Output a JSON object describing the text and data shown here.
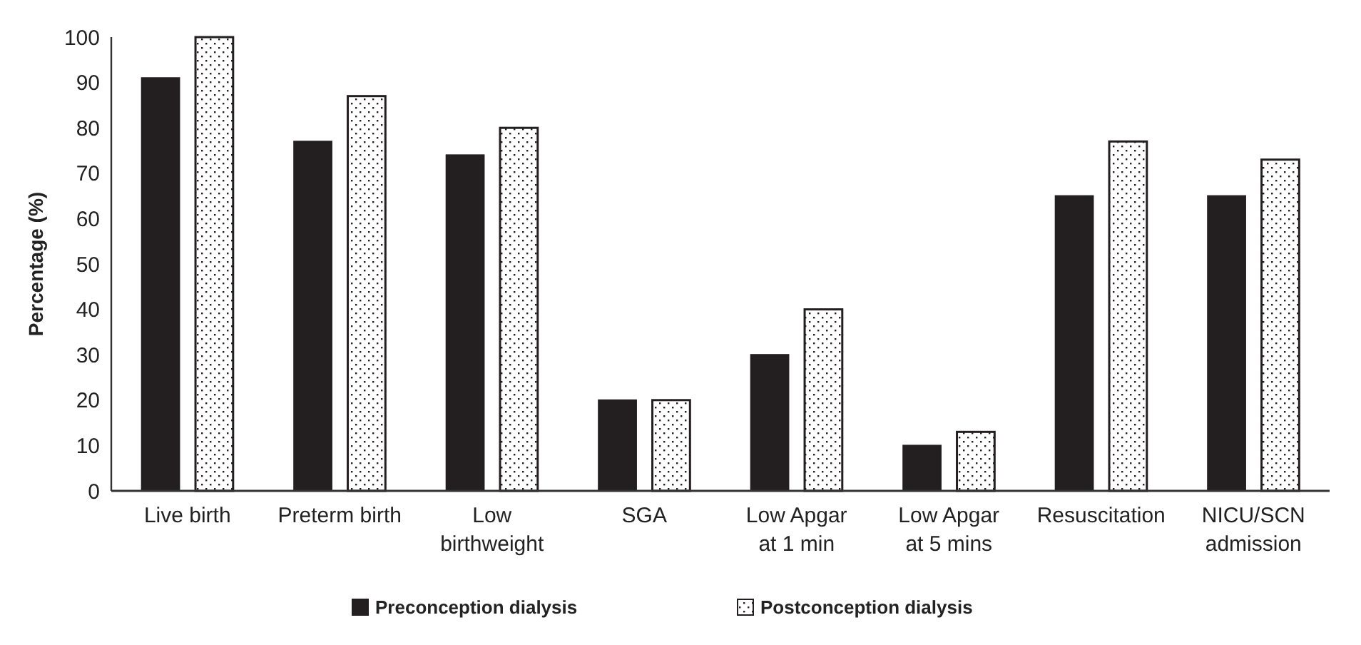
{
  "chart_data": {
    "type": "bar",
    "ylabel": "Percentage (%)",
    "categories": [
      "Live birth",
      "Preterm birth",
      "Low birthweight",
      "SGA",
      "Low Apgar at 1 min",
      "Low Apgar at 5 mins",
      "Resuscitation",
      "NICU/SCN admission"
    ],
    "series": [
      {
        "name": "Preconception dialysis",
        "color": "#231f20",
        "values": [
          91,
          77,
          74,
          20,
          30,
          10,
          65,
          65
        ]
      },
      {
        "name": "Postconception dialysis",
        "color": "#231f20",
        "values": [
          100,
          87,
          80,
          20,
          40,
          13,
          77,
          73
        ]
      }
    ],
    "ylim": [
      0,
      100
    ],
    "yticks": [
      0,
      10,
      20,
      30,
      40,
      50,
      60,
      70,
      80,
      90,
      100
    ],
    "grid": false,
    "legend": "bottom"
  }
}
